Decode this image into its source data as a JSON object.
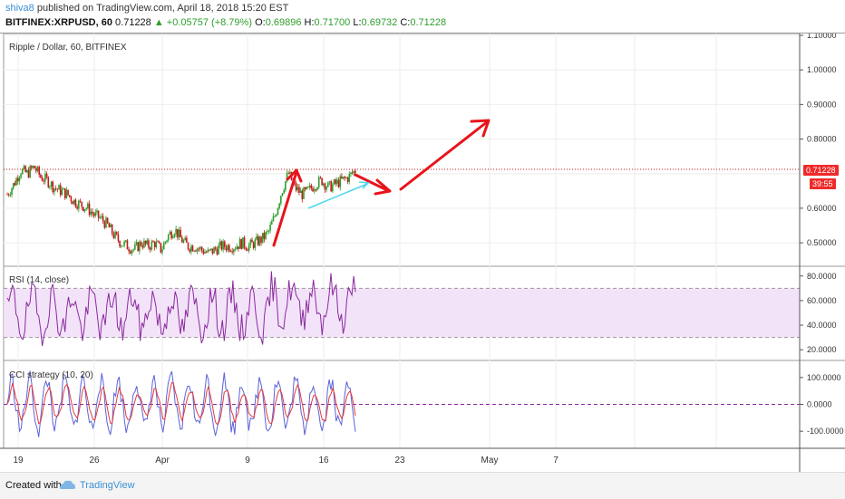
{
  "header": {
    "username": "shiva8",
    "published_text": "published on TradingView.com, April 18, 2018 15:20 EST",
    "symbol": "BITFINEX:XRPUSD, 60",
    "last": "0.71228",
    "change": "▲ +0.05757 (+8.79%)",
    "o_label": "O:",
    "o_value": "0.69896",
    "h_label": "H:",
    "h_value": "0.71700",
    "l_label": "L:",
    "l_value": "0.69732",
    "c_label": "C:",
    "c_value": "0.71228"
  },
  "panes": {
    "price_title": "Ripple / Dollar, 60, BITFINEX",
    "rsi_title": "RSI (14, close)",
    "cci_title": "CCI strategy (10, 20)"
  },
  "price_axis": {
    "ticks": [
      "1.10000",
      "1.00000",
      "0.90000",
      "0.80000",
      "0.60000",
      "0.50000"
    ],
    "last_price_tag": "0.71228",
    "countdown_tag": "39:55"
  },
  "rsi_axis": {
    "ticks": [
      "80.0000",
      "60.0000",
      "40.0000",
      "20.0000"
    ]
  },
  "cci_axis": {
    "ticks": [
      "100.0000",
      "0.0000",
      "-100.0000"
    ]
  },
  "time_axis": {
    "ticks": [
      "19",
      "26",
      "Apr",
      "9",
      "16",
      "23",
      "May",
      "7"
    ]
  },
  "footer": {
    "created_with": "Created with",
    "brand": "TradingView"
  },
  "colors": {
    "up_candle": "#2e9e2e",
    "down_candle": "#c41a1a",
    "rsi_line": "#8a2a9e",
    "rsi_band": "#f0dcf8",
    "cci_line": "#5b63d8",
    "cci_signal": "#e23a3a",
    "annotation_arrow": "#e8141c",
    "trend_line": "#4fd8ea"
  },
  "chart_data": {
    "type": "line",
    "ylim": [
      0.44,
      1.1
    ],
    "last_price": 0.71228,
    "close_series": [
      0.64,
      0.67,
      0.71,
      0.7,
      0.72,
      0.69,
      0.68,
      0.66,
      0.65,
      0.64,
      0.62,
      0.61,
      0.6,
      0.58,
      0.57,
      0.55,
      0.52,
      0.5,
      0.49,
      0.48,
      0.5,
      0.49,
      0.5,
      0.48,
      0.52,
      0.54,
      0.51,
      0.49,
      0.49,
      0.48,
      0.47,
      0.48,
      0.49,
      0.49,
      0.49,
      0.5,
      0.49,
      0.5,
      0.51,
      0.53,
      0.58,
      0.65,
      0.7,
      0.66,
      0.64,
      0.65,
      0.67,
      0.68,
      0.66,
      0.67,
      0.68,
      0.69,
      0.71
    ],
    "rsi": {
      "upper": 70,
      "lower": 30,
      "ylim": [
        15,
        85
      ]
    },
    "cci": {
      "zero": 0,
      "ylim": [
        -150,
        150
      ]
    }
  }
}
